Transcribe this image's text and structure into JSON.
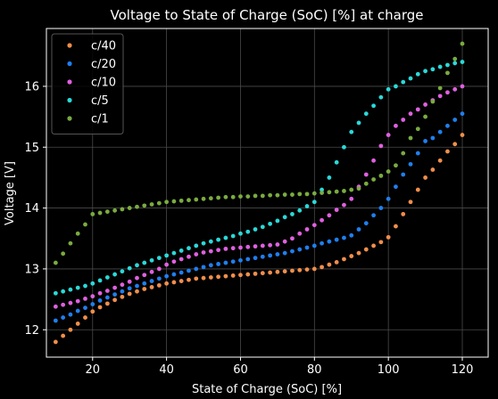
{
  "chart_data": {
    "type": "scatter",
    "title": "Voltage to State of Charge (SoC) [%] at charge",
    "xlabel": "State of Charge (SoC) [%]",
    "ylabel": "Voltage [V]",
    "xlim": [
      7.5,
      127
    ],
    "ylim": [
      11.55,
      16.95
    ],
    "xticks": [
      20,
      40,
      60,
      80,
      100,
      120
    ],
    "yticks": [
      12,
      13,
      14,
      15,
      16
    ],
    "grid": true,
    "legend_position": "top-left",
    "x": [
      10,
      12,
      14,
      16,
      18,
      20,
      22,
      24,
      26,
      28,
      30,
      32,
      34,
      36,
      38,
      40,
      42,
      44,
      46,
      48,
      50,
      52,
      54,
      56,
      58,
      60,
      62,
      64,
      66,
      68,
      70,
      72,
      74,
      76,
      78,
      80,
      82,
      84,
      86,
      88,
      90,
      92,
      94,
      96,
      98,
      100,
      102,
      104,
      106,
      108,
      110,
      112,
      114,
      116,
      118,
      120
    ],
    "series": [
      {
        "name": "c/40",
        "color": "#f28e4b",
        "values": [
          11.8,
          11.9,
          12.0,
          12.1,
          12.2,
          12.3,
          12.37,
          12.43,
          12.49,
          12.54,
          12.59,
          12.63,
          12.67,
          12.7,
          12.73,
          12.76,
          12.78,
          12.8,
          12.82,
          12.84,
          12.85,
          12.86,
          12.87,
          12.88,
          12.89,
          12.9,
          12.91,
          12.92,
          12.93,
          12.94,
          12.95,
          12.96,
          12.97,
          12.98,
          12.99,
          13.0,
          13.03,
          13.07,
          13.11,
          13.16,
          13.21,
          13.26,
          13.32,
          13.38,
          13.44,
          13.52,
          13.7,
          13.9,
          14.1,
          14.3,
          14.5,
          14.63,
          14.78,
          14.93,
          15.05,
          15.2
        ]
      },
      {
        "name": "c/20",
        "color": "#1f7ff0",
        "values": [
          12.15,
          12.2,
          12.25,
          12.31,
          12.36,
          12.42,
          12.48,
          12.53,
          12.58,
          12.63,
          12.68,
          12.72,
          12.76,
          12.8,
          12.84,
          12.88,
          12.91,
          12.94,
          12.97,
          13.0,
          13.03,
          13.06,
          13.08,
          13.1,
          13.12,
          13.14,
          13.16,
          13.18,
          13.2,
          13.22,
          13.24,
          13.26,
          13.29,
          13.32,
          13.35,
          13.38,
          13.42,
          13.45,
          13.48,
          13.51,
          13.55,
          13.65,
          13.75,
          13.88,
          14.0,
          14.15,
          14.35,
          14.55,
          14.72,
          14.9,
          15.1,
          15.15,
          15.25,
          15.35,
          15.45,
          15.55
        ]
      },
      {
        "name": "c/10",
        "color": "#e060e0",
        "values": [
          12.38,
          12.41,
          12.44,
          12.47,
          12.51,
          12.55,
          12.6,
          12.64,
          12.69,
          12.74,
          12.79,
          12.85,
          12.9,
          12.95,
          13.0,
          13.07,
          13.12,
          13.16,
          13.2,
          13.24,
          13.27,
          13.29,
          13.31,
          13.33,
          13.34,
          13.35,
          13.36,
          13.37,
          13.38,
          13.39,
          13.4,
          13.45,
          13.5,
          13.58,
          13.65,
          13.72,
          13.8,
          13.88,
          13.97,
          14.05,
          14.15,
          14.35,
          14.55,
          14.78,
          15.02,
          15.2,
          15.35,
          15.45,
          15.55,
          15.62,
          15.7,
          15.77,
          15.84,
          15.9,
          15.95,
          16.0
        ]
      },
      {
        "name": "c/5",
        "color": "#2ad9d9",
        "values": [
          12.6,
          12.63,
          12.66,
          12.69,
          12.72,
          12.76,
          12.81,
          12.86,
          12.91,
          12.96,
          13.01,
          13.06,
          13.1,
          13.14,
          13.18,
          13.22,
          13.26,
          13.3,
          13.34,
          13.38,
          13.42,
          13.45,
          13.48,
          13.51,
          13.54,
          13.58,
          13.61,
          13.65,
          13.69,
          13.74,
          13.79,
          13.85,
          13.9,
          13.96,
          14.03,
          14.1,
          14.3,
          14.5,
          14.75,
          15.0,
          15.25,
          15.4,
          15.55,
          15.68,
          15.82,
          15.95,
          16.0,
          16.07,
          16.13,
          16.2,
          16.25,
          16.28,
          16.32,
          16.35,
          16.38,
          16.4
        ]
      },
      {
        "name": "c/1",
        "color": "#7aab3f",
        "values": [
          13.1,
          13.25,
          13.42,
          13.58,
          13.73,
          13.9,
          13.92,
          13.94,
          13.96,
          13.98,
          14.0,
          14.02,
          14.04,
          14.06,
          14.08,
          14.1,
          14.11,
          14.12,
          14.13,
          14.14,
          14.15,
          14.16,
          14.17,
          14.18,
          14.18,
          14.19,
          14.19,
          14.2,
          14.2,
          14.21,
          14.21,
          14.22,
          14.22,
          14.23,
          14.23,
          14.24,
          14.25,
          14.26,
          14.27,
          14.28,
          14.3,
          14.32,
          14.4,
          14.47,
          14.53,
          14.6,
          14.7,
          14.9,
          15.15,
          15.3,
          15.5,
          15.75,
          15.97,
          16.22,
          16.45,
          16.7
        ]
      }
    ]
  }
}
